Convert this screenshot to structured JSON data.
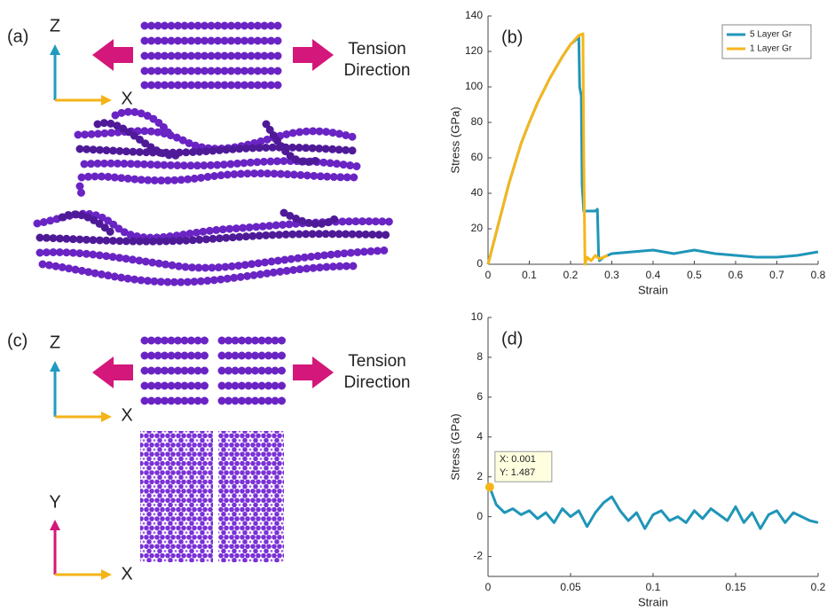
{
  "figure": {
    "panel_a": "(a)",
    "panel_c": "(c)",
    "axes_a": {
      "z": "Z",
      "x": "X"
    },
    "tension_a": "Tension Direction",
    "axes_c": {
      "z": "Z",
      "x": "X",
      "y": "Y",
      "x2": "X"
    },
    "tension_c": "Tension Direction"
  },
  "chart_data": [
    {
      "type": "line",
      "panel_label": "(b)",
      "xlabel": "Strain",
      "ylabel": "Stress (GPa)",
      "xlim": [
        0,
        0.8
      ],
      "xticks": [
        0,
        0.1,
        0.2,
        0.3,
        0.4,
        0.5,
        0.6,
        0.7,
        0.8
      ],
      "ylim": [
        0,
        140
      ],
      "yticks": [
        0,
        20,
        40,
        60,
        80,
        100,
        120,
        140
      ],
      "legend": "upper right",
      "series": [
        {
          "name": "5 Layer Gr",
          "color": "#1f96b8",
          "x": [
            0,
            0.02,
            0.05,
            0.08,
            0.1,
            0.12,
            0.15,
            0.18,
            0.2,
            0.215,
            0.22,
            0.222,
            0.226,
            0.228,
            0.232,
            0.24,
            0.26,
            0.265,
            0.268,
            0.27,
            0.28,
            0.3,
            0.35,
            0.4,
            0.45,
            0.5,
            0.55,
            0.6,
            0.65,
            0.7,
            0.75,
            0.8
          ],
          "values": [
            0,
            18,
            45,
            68,
            80,
            91,
            105,
            117,
            124,
            127,
            128,
            100,
            95,
            45,
            30,
            30,
            30,
            31,
            5,
            2,
            4,
            6,
            7,
            8,
            6,
            8,
            6,
            5,
            4,
            4,
            5,
            7
          ]
        },
        {
          "name": "1 Layer Gr",
          "color": "#f6b619",
          "x": [
            0,
            0.02,
            0.05,
            0.08,
            0.1,
            0.12,
            0.15,
            0.18,
            0.2,
            0.22,
            0.23,
            0.232,
            0.235,
            0.24,
            0.25,
            0.26,
            0.27,
            0.28,
            0.29
          ],
          "values": [
            0,
            18,
            45,
            68,
            80,
            91,
            105,
            117,
            124,
            129,
            130,
            60,
            0,
            4,
            2,
            5,
            3,
            4,
            5
          ]
        }
      ]
    },
    {
      "type": "line",
      "panel_label": "(d)",
      "xlabel": "Strain",
      "ylabel": "Stress (GPa)",
      "xlim": [
        0,
        0.2
      ],
      "xticks": [
        0,
        0.05,
        0.1,
        0.15,
        0.2
      ],
      "ylim": [
        -3,
        10
      ],
      "yticks": [
        -2,
        0,
        2,
        4,
        6,
        8,
        10
      ],
      "series": [
        {
          "color": "#1f96b8",
          "x": [
            0.001,
            0.005,
            0.01,
            0.015,
            0.02,
            0.025,
            0.03,
            0.035,
            0.04,
            0.045,
            0.05,
            0.055,
            0.06,
            0.065,
            0.07,
            0.075,
            0.08,
            0.085,
            0.09,
            0.095,
            0.1,
            0.105,
            0.11,
            0.115,
            0.12,
            0.125,
            0.13,
            0.135,
            0.14,
            0.145,
            0.15,
            0.155,
            0.16,
            0.165,
            0.17,
            0.175,
            0.18,
            0.185,
            0.19,
            0.195,
            0.2
          ],
          "values": [
            1.487,
            0.6,
            0.2,
            0.4,
            0.1,
            0.3,
            -0.1,
            0.2,
            -0.3,
            0.4,
            0,
            0.3,
            -0.5,
            0.2,
            0.7,
            1.0,
            0.3,
            -0.2,
            0.2,
            -0.6,
            0.1,
            0.3,
            -0.2,
            0,
            -0.3,
            0.3,
            -0.1,
            0.4,
            0.1,
            -0.2,
            0.5,
            -0.3,
            0.2,
            -0.6,
            0.1,
            0.3,
            -0.3,
            0.2,
            0,
            -0.2,
            -0.3
          ]
        }
      ],
      "datatip": {
        "x": 0.001,
        "y": 1.487,
        "color": "#f6b619",
        "labels": [
          "X: 0.001",
          "Y: 1.487"
        ]
      }
    }
  ]
}
